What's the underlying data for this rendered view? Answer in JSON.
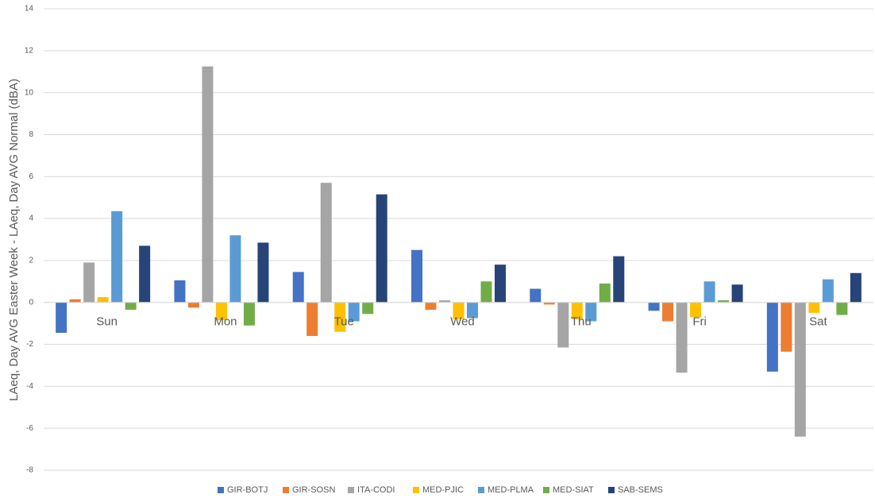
{
  "chart_data": {
    "type": "bar",
    "ylabel": "LAeq, Day AVG Easter Week - LAeq, Day AVG Normal (dBA)",
    "categories": [
      "Sun",
      "Mon",
      "Tue",
      "Wed",
      "Thu",
      "Fri",
      "Sat"
    ],
    "series": [
      {
        "name": "GIR-BOTJ",
        "color": "#4472c4",
        "values": [
          -1.45,
          1.05,
          1.45,
          2.5,
          0.65,
          -0.4,
          -3.3
        ]
      },
      {
        "name": "GIR-SOSN",
        "color": "#ed7d31",
        "values": [
          0.15,
          -0.25,
          -1.6,
          -0.35,
          -0.1,
          -0.9,
          -2.35
        ]
      },
      {
        "name": "ITA-CODI",
        "color": "#a5a5a5",
        "values": [
          1.9,
          11.25,
          5.7,
          0.1,
          -2.15,
          -3.35,
          -6.4
        ]
      },
      {
        "name": "MED-PJIC",
        "color": "#ffc000",
        "values": [
          0.25,
          -0.85,
          -1.4,
          -0.8,
          -0.8,
          -0.7,
          -0.5
        ]
      },
      {
        "name": "MED-PLMA",
        "color": "#5b9bd5",
        "values": [
          4.35,
          3.2,
          -0.9,
          -0.75,
          -0.9,
          1.0,
          1.1
        ]
      },
      {
        "name": "MED-SIAT",
        "color": "#70ad47",
        "values": [
          -0.35,
          -1.1,
          -0.55,
          1.0,
          0.9,
          0.1,
          -0.6
        ]
      },
      {
        "name": "SAB-SEMS",
        "color": "#264478",
        "values": [
          2.7,
          2.85,
          5.15,
          1.8,
          2.2,
          0.85,
          1.4
        ]
      }
    ],
    "ylim": [
      -8,
      14
    ],
    "yticks": [
      -8,
      -6,
      -4,
      -2,
      0,
      2,
      4,
      6,
      8,
      10,
      12,
      14
    ],
    "grid": true,
    "legend": "bottom"
  }
}
